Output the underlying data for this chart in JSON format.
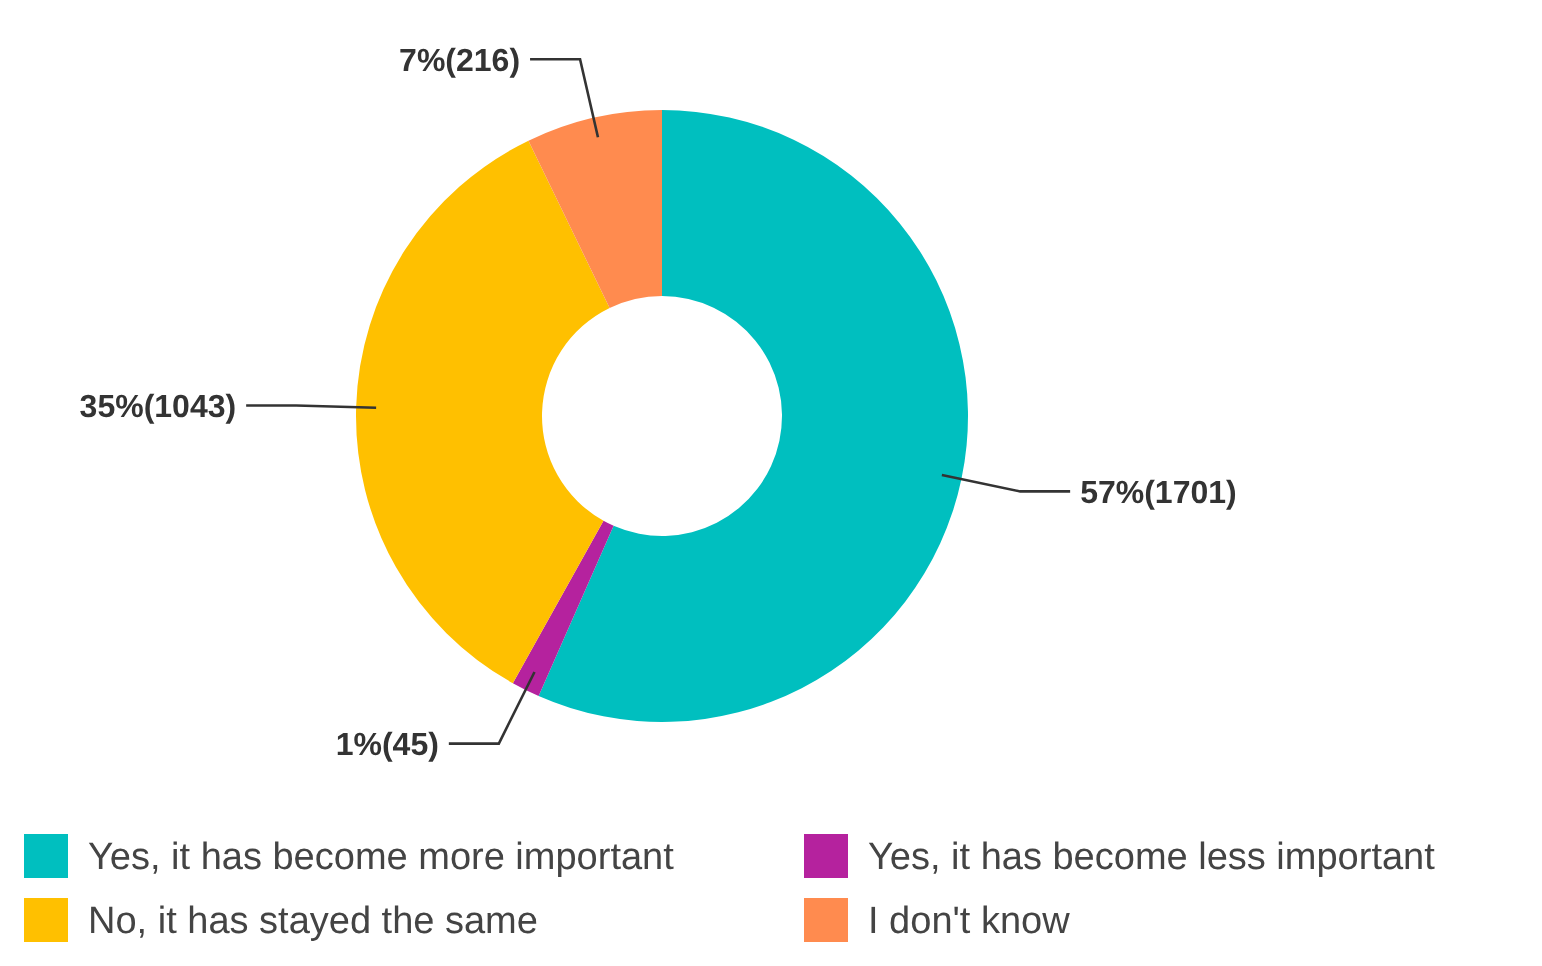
{
  "chart_data": {
    "type": "donut",
    "categories": [
      "Yes, it has become more important",
      "Yes, it has become less important",
      "No, it has stayed the same",
      "I don't know"
    ],
    "values": [
      1701,
      45,
      1043,
      216
    ],
    "colors": [
      "#00bfbf",
      "#b5229e",
      "#ffc000",
      "#ff8b4f"
    ],
    "value_labels": [
      "57%(1701)",
      "1%(45)",
      "35%(1043)",
      "7%(216)"
    ],
    "legend": "bottom"
  }
}
